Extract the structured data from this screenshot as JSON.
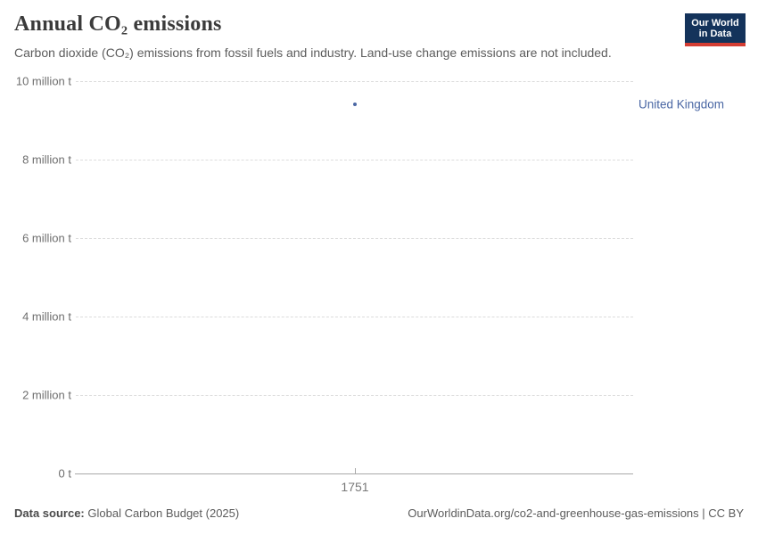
{
  "header": {
    "title": "Annual CO₂ emissions",
    "subtitle": "Carbon dioxide (CO₂) emissions from fossil fuels and industry. Land-use change emissions are not included.",
    "logo": {
      "line1": "Our World",
      "line2": "in Data",
      "bg_color": "#14335b",
      "accent_color": "#d43d33"
    }
  },
  "chart_data": {
    "type": "scatter",
    "title": "Annual CO₂ emissions",
    "subtitle": "Carbon dioxide (CO₂) emissions from fossil fuels and industry. Land-use change emissions are not included.",
    "x": [
      1751
    ],
    "series": [
      {
        "name": "United Kingdom",
        "color": "#4a67a4",
        "values": [
          9400000
        ]
      }
    ],
    "unit": "t",
    "x_ticks": [
      "1751"
    ],
    "y_ticks": [
      "0 t",
      "2 million t",
      "4 million t",
      "6 million t",
      "8 million t",
      "10 million t"
    ],
    "ylim": [
      0,
      10000000
    ],
    "xlabel": "",
    "ylabel": "",
    "grid": "horizontal-dashed",
    "legend_position": "right-of-plot",
    "gridline_color": "#dcdcdc",
    "axis_color": "#a8a8a8"
  },
  "footer": {
    "source_label": "Data source:",
    "source_value": "Global Carbon Budget (2025)",
    "citation": "OurWorldinData.org/co2-and-greenhouse-gas-emissions | CC BY"
  }
}
